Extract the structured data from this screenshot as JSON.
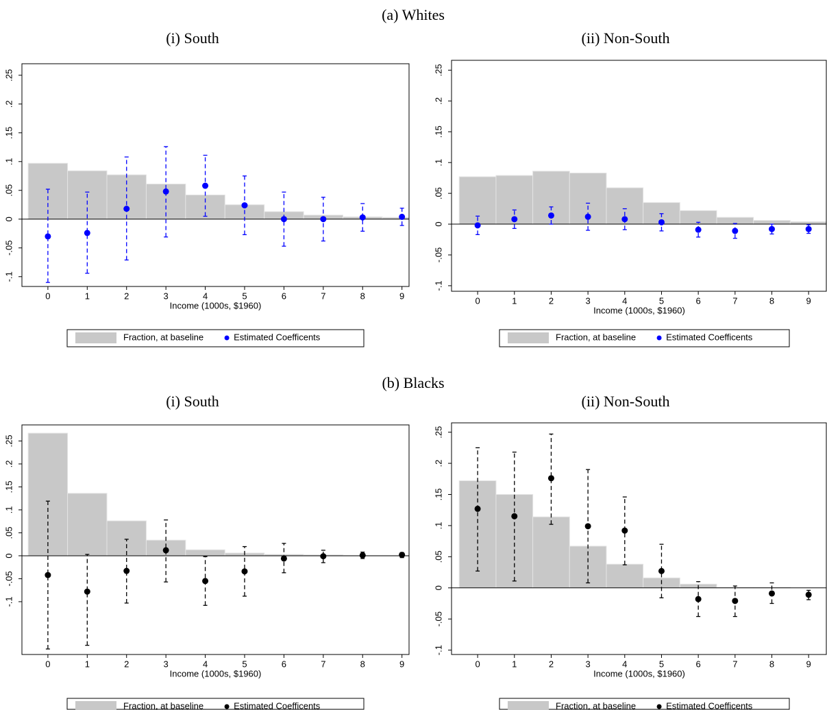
{
  "panel_titles": [
    "(a) Whites",
    "(b) Blacks"
  ],
  "chart_data": [
    {
      "type": "bar",
      "title": "(i) South",
      "x_label": "Income (1000s, $1960)",
      "x": [
        0,
        1,
        2,
        3,
        4,
        5,
        6,
        7,
        8,
        9
      ],
      "xlim": [
        -0.66,
        9.18
      ],
      "xticks": [
        0,
        1,
        2,
        3,
        4,
        5,
        6,
        7,
        8,
        9
      ],
      "ylim": [
        -0.117,
        0.27
      ],
      "yticks": [
        {
          "value": -0.1,
          "label": "-.1"
        },
        {
          "value": -0.05,
          "label": "-.05"
        },
        0,
        {
          "value": 0.05,
          "label": ".05"
        },
        {
          "value": 0.1,
          "label": ".1"
        },
        {
          "value": 0.15,
          "label": ".15"
        },
        {
          "value": 0.2,
          "label": ".2"
        },
        {
          "value": 0.25,
          "label": ".25"
        }
      ],
      "series": [
        {
          "name": "Fraction, at baseline",
          "type": "bar",
          "color": "#c8c8c8",
          "values": [
            0.097,
            0.084,
            0.077,
            0.061,
            0.042,
            0.025,
            0.013,
            0.007,
            0.004,
            0.003
          ]
        },
        {
          "name": "Estimated Coefficents",
          "type": "errorbar",
          "color": "#0000ff",
          "values": [
            -0.03,
            -0.024,
            0.018,
            0.048,
            0.058,
            0.024,
            0.0,
            0.0,
            0.003,
            0.004
          ],
          "ci_low": [
            -0.11,
            -0.094,
            -0.071,
            -0.031,
            0.005,
            -0.027,
            -0.047,
            -0.038,
            -0.021,
            -0.011
          ],
          "ci_high": [
            0.052,
            0.047,
            0.108,
            0.126,
            0.111,
            0.075,
            0.047,
            0.038,
            0.027,
            0.019
          ]
        }
      ]
    },
    {
      "type": "bar",
      "title": "(ii) Non-South",
      "x_label": "Income (1000s, $1960)",
      "x": [
        0,
        1,
        2,
        3,
        4,
        5,
        6,
        7,
        8,
        9
      ],
      "xlim": [
        -0.71,
        9.5
      ],
      "xticks": [
        0,
        1,
        2,
        3,
        4,
        5,
        6,
        7,
        8,
        9
      ],
      "ylim": [
        -0.109,
        0.266
      ],
      "yticks": [
        {
          "value": -0.1,
          "label": "-.1"
        },
        {
          "value": -0.05,
          "label": "-.05"
        },
        0,
        {
          "value": 0.05,
          "label": ".05"
        },
        {
          "value": 0.1,
          "label": ".1"
        },
        {
          "value": 0.15,
          "label": ".15"
        },
        {
          "value": 0.2,
          "label": ".2"
        },
        {
          "value": 0.25,
          "label": ".25"
        }
      ],
      "series": [
        {
          "name": "Fraction, at baseline",
          "type": "bar",
          "color": "#c8c8c8",
          "values": [
            0.077,
            0.079,
            0.086,
            0.083,
            0.059,
            0.035,
            0.022,
            0.011,
            0.006,
            0.004
          ]
        },
        {
          "name": "Estimated Coefficents",
          "type": "errorbar",
          "color": "#0000ff",
          "values": [
            -0.002,
            0.008,
            0.014,
            0.012,
            0.008,
            0.003,
            -0.009,
            -0.011,
            -0.008,
            -0.008
          ],
          "ci_low": [
            -0.017,
            -0.007,
            0.0,
            -0.01,
            -0.009,
            -0.011,
            -0.021,
            -0.023,
            -0.016,
            -0.015
          ],
          "ci_high": [
            0.013,
            0.023,
            0.028,
            0.034,
            0.025,
            0.017,
            0.003,
            0.001,
            0.0,
            -0.001
          ]
        }
      ]
    },
    {
      "type": "bar",
      "title": "(i) South",
      "x_label": "Income (1000s, $1960)",
      "x": [
        0,
        1,
        2,
        3,
        4,
        5,
        6,
        7,
        8,
        9
      ],
      "xlim": [
        -0.66,
        9.18
      ],
      "xticks": [
        0,
        1,
        2,
        3,
        4,
        5,
        6,
        7,
        8,
        9
      ],
      "ylim": [
        -0.215,
        0.285
      ],
      "yticks": [
        {
          "value": -0.1,
          "label": "-.1"
        },
        {
          "value": -0.05,
          "label": "-.05"
        },
        0,
        {
          "value": 0.05,
          "label": ".05"
        },
        {
          "value": 0.1,
          "label": ".1"
        },
        {
          "value": 0.15,
          "label": ".15"
        },
        {
          "value": 0.2,
          "label": ".2"
        },
        {
          "value": 0.25,
          "label": ".25"
        }
      ],
      "series": [
        {
          "name": "Fraction, at baseline",
          "type": "bar",
          "color": "#c8c8c8",
          "values": [
            0.267,
            0.136,
            0.076,
            0.034,
            0.013,
            0.006,
            0.003,
            0.002,
            0.001,
            0.001
          ]
        },
        {
          "name": "Estimated Coefficents",
          "type": "errorbar",
          "color": "#000000",
          "values": [
            -0.042,
            -0.078,
            -0.033,
            0.012,
            -0.055,
            -0.034,
            -0.006,
            -0.001,
            0.001,
            0.002
          ],
          "ci_low": [
            -0.203,
            -0.195,
            -0.103,
            -0.057,
            -0.108,
            -0.088,
            -0.037,
            -0.015,
            -0.006,
            -0.004
          ],
          "ci_high": [
            0.119,
            0.003,
            0.036,
            0.078,
            -0.002,
            0.02,
            0.027,
            0.012,
            0.008,
            0.007
          ]
        }
      ]
    },
    {
      "type": "bar",
      "title": "(ii) Non-South",
      "x_label": "Income (1000s, $1960)",
      "x": [
        0,
        1,
        2,
        3,
        4,
        5,
        6,
        7,
        8,
        9
      ],
      "xlim": [
        -0.71,
        9.5
      ],
      "xticks": [
        0,
        1,
        2,
        3,
        4,
        5,
        6,
        7,
        8,
        9
      ],
      "ylim": [
        -0.107,
        0.265
      ],
      "yticks": [
        {
          "value": -0.1,
          "label": "-.1"
        },
        {
          "value": -0.05,
          "label": "-.05"
        },
        0,
        {
          "value": 0.05,
          "label": ".05"
        },
        {
          "value": 0.1,
          "label": ".1"
        },
        {
          "value": 0.15,
          "label": ".15"
        },
        {
          "value": 0.2,
          "label": ".2"
        },
        {
          "value": 0.25,
          "label": ".25"
        }
      ],
      "series": [
        {
          "name": "Fraction, at baseline",
          "type": "bar",
          "color": "#c8c8c8",
          "values": [
            0.172,
            0.15,
            0.114,
            0.067,
            0.038,
            0.016,
            0.006,
            0.001,
            0.001,
            0.0
          ]
        },
        {
          "name": "Estimated Coefficents",
          "type": "errorbar",
          "color": "#000000",
          "values": [
            0.127,
            0.115,
            0.176,
            0.099,
            0.092,
            0.027,
            -0.018,
            -0.021,
            -0.009,
            -0.011
          ],
          "ci_low": [
            0.027,
            0.011,
            0.102,
            0.008,
            0.037,
            -0.016,
            -0.046,
            -0.046,
            -0.025,
            -0.019
          ],
          "ci_high": [
            0.225,
            0.218,
            0.247,
            0.19,
            0.146,
            0.07,
            0.01,
            0.003,
            0.008,
            -0.004
          ]
        }
      ]
    }
  ]
}
